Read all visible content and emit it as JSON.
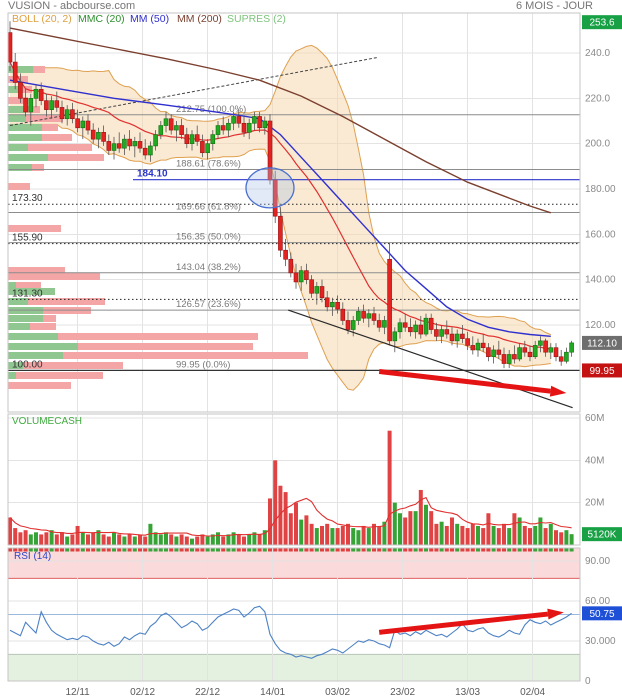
{
  "header": {
    "title": "VUSION - abcbourse.com",
    "period": "6 MOIS - JOUR"
  },
  "legend": {
    "items": [
      {
        "label": "BOLL (20, 2)",
        "color": "#e0a040"
      },
      {
        "label": "MMC (20)",
        "color": "#2f8f2f"
      },
      {
        "label": "MM (50)",
        "color": "#3030cf"
      },
      {
        "label": "MM (200)",
        "color": "#7b3f2e"
      },
      {
        "label": "SUPRES (2)",
        "color": "#7cc47c"
      }
    ]
  },
  "panels": {
    "volume_label": "VOLUMECASH",
    "rsi_label": "RSI (14)"
  },
  "axes": {
    "price_ticks": [
      {
        "v": 240,
        "label": "240.0"
      },
      {
        "v": 220,
        "label": "220.0"
      },
      {
        "v": 200,
        "label": "200.0"
      },
      {
        "v": 180,
        "label": "180.00"
      },
      {
        "v": 160,
        "label": "160.00"
      },
      {
        "v": 140,
        "label": "140.00"
      },
      {
        "v": 120,
        "label": "120.00"
      }
    ],
    "volume_ticks": [
      {
        "v": 60,
        "label": "60M"
      },
      {
        "v": 40,
        "label": "40M"
      },
      {
        "v": 20,
        "label": "20M"
      }
    ],
    "rsi_ticks": [
      {
        "v": 90,
        "label": "90.00"
      },
      {
        "v": 60,
        "label": "60.00"
      },
      {
        "v": 30,
        "label": "30.000"
      },
      {
        "v": 0,
        "label": "0"
      }
    ]
  },
  "badges": [
    {
      "label": "253.6",
      "color": "#18a045",
      "panel": "price",
      "value": 253.6
    },
    {
      "label": "112.10",
      "color": "#6e6e6e",
      "panel": "price",
      "value": 112.1
    },
    {
      "label": "99.95",
      "color": "#c41111",
      "panel": "price",
      "value": 99.95
    },
    {
      "label": "5120K",
      "color": "#18a045",
      "panel": "volume",
      "value": 5.12
    },
    {
      "label": "50.75",
      "color": "#1d4fd7",
      "panel": "rsi",
      "value": 50.75
    }
  ],
  "levels": {
    "fibonacci": [
      {
        "price": 212.75,
        "label": "212.75",
        "pct": "100.0%"
      },
      {
        "price": 188.61,
        "label": "188.61",
        "pct": "78.6%"
      },
      {
        "price": 169.66,
        "label": "169.66",
        "pct": "61.8%"
      },
      {
        "price": 156.35,
        "label": "156.35",
        "pct": "50.0%"
      },
      {
        "price": 143.04,
        "label": "143.04",
        "pct": "38.2%"
      },
      {
        "price": 126.57,
        "label": "126.57",
        "pct": "23.6%"
      },
      {
        "price": 99.95,
        "label": "99.95",
        "pct": "0.0%"
      }
    ],
    "horizontal": [
      {
        "label": "173.30",
        "price": 173.3,
        "style": "dotted"
      },
      {
        "label": "155.90",
        "price": 155.9,
        "style": "dotted"
      },
      {
        "label": "131.30",
        "price": 131.3,
        "style": "dotted"
      },
      {
        "label": "100.00",
        "price": 100.0,
        "style": "solid"
      }
    ],
    "blue_line": {
      "label": "184.10",
      "price": 184.1
    }
  },
  "annotations": {
    "ellipse": {
      "index": 50,
      "price": 180.5
    },
    "trendline_dotted": {
      "from": {
        "index": 0,
        "price": 208
      },
      "to": {
        "index": 70.6,
        "price": 238
      }
    },
    "trendline_solid": {
      "from": {
        "index": 53.5,
        "price": 126.6
      },
      "to": {
        "index": 108.2,
        "price": 83.5
      }
    },
    "arrow_price": {
      "from": {
        "index": 71,
        "price": 99.5
      },
      "to": {
        "index": 107,
        "price": 90
      }
    },
    "arrow_rsi": {
      "from": {
        "index": 71,
        "value": 36.5
      },
      "to": {
        "index": 106.5,
        "value": 51.5
      }
    }
  },
  "chart_data": {
    "type": "candlestick",
    "title": "VUSION - abcbourse.com",
    "period": "6 MOIS - JOUR",
    "price_axis_range": [
      83,
      254
    ],
    "volume_axis_range_millions": [
      0,
      62
    ],
    "rsi_range": [
      0,
      100
    ],
    "last_price": 112.1,
    "last_volume_label": "5120K",
    "last_rsi": 50.75,
    "support": 99.95,
    "resistance": 253.6,
    "dates": [
      {
        "label": "12/11",
        "i": 13
      },
      {
        "label": "02/12",
        "i": 25.5
      },
      {
        "label": "22/12",
        "i": 38
      },
      {
        "label": "14/01",
        "i": 50.5
      },
      {
        "label": "03/02",
        "i": 63
      },
      {
        "label": "23/02",
        "i": 75.5
      },
      {
        "label": "13/03",
        "i": 88
      },
      {
        "label": "02/04",
        "i": 100.5
      }
    ],
    "candles": [
      [
        249,
        254,
        232,
        236
      ],
      [
        236,
        240,
        224,
        227
      ],
      [
        227,
        231,
        218,
        220
      ],
      [
        220,
        224,
        212,
        214
      ],
      [
        214,
        222,
        208,
        220
      ],
      [
        220,
        226,
        216,
        224
      ],
      [
        224,
        227,
        217,
        219
      ],
      [
        219,
        222,
        212,
        215
      ],
      [
        215,
        221,
        211,
        219
      ],
      [
        219,
        223,
        214,
        216
      ],
      [
        216,
        219,
        209,
        211
      ],
      [
        211,
        217,
        208,
        215
      ],
      [
        215,
        218,
        209,
        211
      ],
      [
        211,
        215,
        205,
        207
      ],
      [
        207,
        212,
        202,
        210
      ],
      [
        210,
        213,
        204,
        206
      ],
      [
        206,
        209,
        200,
        202
      ],
      [
        202,
        207,
        198,
        205
      ],
      [
        205,
        208,
        199,
        201
      ],
      [
        201,
        204,
        195,
        197
      ],
      [
        197,
        203,
        193,
        200
      ],
      [
        200,
        205,
        196,
        198
      ],
      [
        198,
        204,
        195,
        202
      ],
      [
        202,
        206,
        197,
        199
      ],
      [
        199,
        203,
        194,
        201
      ],
      [
        201,
        205,
        196,
        198
      ],
      [
        198,
        202,
        193,
        195
      ],
      [
        195,
        201,
        192,
        199
      ],
      [
        199,
        206,
        197,
        204
      ],
      [
        204,
        210,
        202,
        208
      ],
      [
        208,
        214,
        205,
        211
      ],
      [
        211,
        213,
        204,
        206
      ],
      [
        206,
        210,
        201,
        208
      ],
      [
        208,
        211,
        202,
        204
      ],
      [
        204,
        207,
        198,
        200
      ],
      [
        200,
        206,
        197,
        204
      ],
      [
        204,
        208,
        199,
        201
      ],
      [
        201,
        204,
        194,
        196
      ],
      [
        196,
        202,
        193,
        200
      ],
      [
        200,
        206,
        197,
        204
      ],
      [
        204,
        210,
        202,
        208
      ],
      [
        208,
        212,
        204,
        206
      ],
      [
        206,
        211,
        203,
        209
      ],
      [
        209,
        214,
        206,
        212
      ],
      [
        212,
        215,
        207,
        209
      ],
      [
        209,
        212,
        203,
        205
      ],
      [
        205,
        211,
        202,
        209
      ],
      [
        209,
        214,
        206,
        212
      ],
      [
        212,
        214,
        205,
        207
      ],
      [
        207,
        212,
        204,
        210
      ],
      [
        210,
        213,
        182,
        184
      ],
      [
        184,
        188,
        165,
        168
      ],
      [
        168,
        172,
        150,
        153
      ],
      [
        153,
        158,
        146,
        149
      ],
      [
        149,
        152,
        141,
        143
      ],
      [
        143,
        147,
        136,
        139
      ],
      [
        139,
        146,
        135,
        144
      ],
      [
        144,
        147,
        138,
        140
      ],
      [
        140,
        142,
        132,
        134
      ],
      [
        134,
        139,
        129,
        137
      ],
      [
        137,
        140,
        130,
        132
      ],
      [
        132,
        135,
        126,
        128
      ],
      [
        128,
        132,
        124,
        130
      ],
      [
        130,
        133,
        125,
        127
      ],
      [
        127,
        130,
        120,
        122
      ],
      [
        122,
        126,
        116,
        118
      ],
      [
        118,
        124,
        115,
        122
      ],
      [
        122,
        128,
        120,
        126
      ],
      [
        126,
        129,
        121,
        123
      ],
      [
        123,
        127,
        119,
        125
      ],
      [
        125,
        128,
        120,
        122
      ],
      [
        122,
        125,
        117,
        119
      ],
      [
        119,
        124,
        116,
        122
      ],
      [
        149,
        156,
        111,
        113
      ],
      [
        113,
        119,
        108,
        117
      ],
      [
        117,
        123,
        114,
        121
      ],
      [
        121,
        125,
        117,
        119
      ],
      [
        119,
        123,
        115,
        117
      ],
      [
        117,
        122,
        114,
        120
      ],
      [
        120,
        124,
        114,
        116
      ],
      [
        116,
        125,
        115,
        123
      ],
      [
        123,
        125,
        116,
        118
      ],
      [
        118,
        121,
        113,
        115
      ],
      [
        115,
        120,
        112,
        118
      ],
      [
        118,
        122,
        114,
        116
      ],
      [
        116,
        119,
        111,
        113
      ],
      [
        113,
        118,
        110,
        116
      ],
      [
        116,
        120,
        112,
        114
      ],
      [
        114,
        117,
        109,
        111
      ],
      [
        111,
        115,
        107,
        109
      ],
      [
        109,
        114,
        106,
        112
      ],
      [
        112,
        116,
        108,
        110
      ],
      [
        110,
        112,
        104,
        106
      ],
      [
        106,
        111,
        103,
        109
      ],
      [
        109,
        113,
        105,
        107
      ],
      [
        107,
        110,
        101,
        103
      ],
      [
        103,
        109,
        101,
        107
      ],
      [
        107,
        111,
        103,
        105
      ],
      [
        105,
        112,
        104,
        110
      ],
      [
        110,
        113,
        106,
        108
      ],
      [
        108,
        111,
        104,
        106
      ],
      [
        106,
        113,
        105,
        111
      ],
      [
        111,
        115,
        108,
        113
      ],
      [
        113,
        114,
        106,
        108
      ],
      [
        108,
        112,
        105,
        110
      ],
      [
        110,
        112,
        104,
        106
      ],
      [
        106,
        109,
        102,
        104
      ],
      [
        104,
        110,
        103,
        108
      ],
      [
        108,
        113,
        106,
        112.1
      ]
    ],
    "volumes_m": [
      13,
      8,
      6,
      7,
      5,
      6,
      5,
      6,
      7,
      5,
      6,
      4,
      5,
      9,
      6,
      5,
      6,
      7,
      5,
      4,
      6,
      5,
      4,
      5,
      4,
      5,
      4,
      10,
      6,
      5,
      6,
      5,
      4,
      5,
      4,
      3,
      4,
      5,
      4,
      5,
      6,
      4,
      5,
      6,
      5,
      4,
      5,
      6,
      5,
      7,
      22,
      40,
      28,
      25,
      15,
      20,
      12,
      14,
      10,
      8,
      9,
      10,
      8,
      8,
      9,
      10,
      8,
      7,
      9,
      8,
      10,
      9,
      11,
      54,
      20,
      15,
      13,
      16,
      16,
      26,
      19,
      16,
      10,
      11,
      9,
      13,
      10,
      9,
      8,
      10,
      9,
      8,
      15,
      9,
      8,
      10,
      8,
      15,
      13,
      9,
      8,
      9,
      13,
      8,
      10,
      7,
      6,
      7,
      5.12
    ],
    "rsi": [
      38,
      36,
      34,
      44,
      40,
      36,
      52,
      44,
      38,
      35,
      33,
      31,
      32,
      31,
      34,
      33,
      30,
      28,
      27,
      29,
      26,
      28,
      33,
      31,
      34,
      36,
      35,
      41,
      44,
      49,
      51,
      48,
      44,
      40,
      42,
      45,
      43,
      38,
      40,
      44,
      48,
      50,
      52,
      54,
      53,
      48,
      51,
      55,
      56,
      52,
      35,
      28,
      23,
      21,
      20,
      18,
      19,
      18,
      17,
      19,
      20,
      22,
      24,
      23,
      21,
      24,
      27,
      30,
      29,
      31,
      30,
      28,
      27,
      25,
      38,
      35,
      36,
      34,
      37,
      35,
      38,
      36,
      34,
      35,
      33,
      36,
      39,
      43,
      38,
      37,
      39,
      40,
      36,
      34,
      33,
      35,
      38,
      36,
      35,
      42,
      46,
      44,
      43,
      45,
      42,
      44,
      46,
      48,
      50.75
    ],
    "mm50": [
      [
        0,
        228
      ],
      [
        10,
        224
      ],
      [
        20,
        220
      ],
      [
        30,
        217
      ],
      [
        38,
        214.5
      ],
      [
        44,
        212.5
      ],
      [
        48,
        211
      ],
      [
        52,
        204
      ],
      [
        56,
        194
      ],
      [
        60,
        184
      ],
      [
        64,
        174
      ],
      [
        68,
        164
      ],
      [
        72,
        154
      ],
      [
        76,
        144
      ],
      [
        80,
        136
      ],
      [
        84,
        128
      ],
      [
        88,
        122.5
      ],
      [
        92,
        119
      ],
      [
        96,
        117
      ],
      [
        100,
        115.8
      ],
      [
        104,
        115
      ]
    ],
    "mm200": [
      [
        0,
        251
      ],
      [
        10,
        246.5
      ],
      [
        20,
        242
      ],
      [
        30,
        237.5
      ],
      [
        40,
        232.5
      ],
      [
        48,
        228
      ],
      [
        56,
        221
      ],
      [
        64,
        212
      ],
      [
        72,
        202
      ],
      [
        80,
        192
      ],
      [
        88,
        183
      ],
      [
        96,
        176
      ],
      [
        100,
        172.5
      ],
      [
        104,
        169.5
      ]
    ],
    "rsi_zones": {
      "overbought_from": 77,
      "oversold_below": 20
    },
    "volume_profile_rows": [
      [
        66,
        25,
        12
      ],
      [
        76,
        0,
        20
      ],
      [
        86,
        14,
        10
      ],
      [
        97,
        0,
        20
      ],
      [
        106,
        18,
        14
      ],
      [
        115,
        18,
        37
      ],
      [
        124,
        34,
        16
      ],
      [
        134,
        34,
        30
      ],
      [
        144,
        20,
        64
      ],
      [
        154,
        40,
        56
      ],
      [
        164,
        24,
        12
      ],
      [
        183,
        0,
        22
      ],
      [
        225,
        0,
        53
      ],
      [
        267,
        0,
        57
      ],
      [
        273,
        0,
        92
      ],
      [
        282,
        8,
        25
      ],
      [
        288,
        47,
        0
      ],
      [
        298,
        20,
        77
      ],
      [
        307,
        35,
        48
      ],
      [
        315,
        35,
        13
      ],
      [
        323,
        22,
        26
      ],
      [
        333,
        50,
        200
      ],
      [
        343,
        70,
        175
      ],
      [
        352,
        55,
        245
      ],
      [
        362,
        15,
        100
      ],
      [
        372,
        8,
        87
      ],
      [
        382,
        0,
        63
      ]
    ]
  }
}
